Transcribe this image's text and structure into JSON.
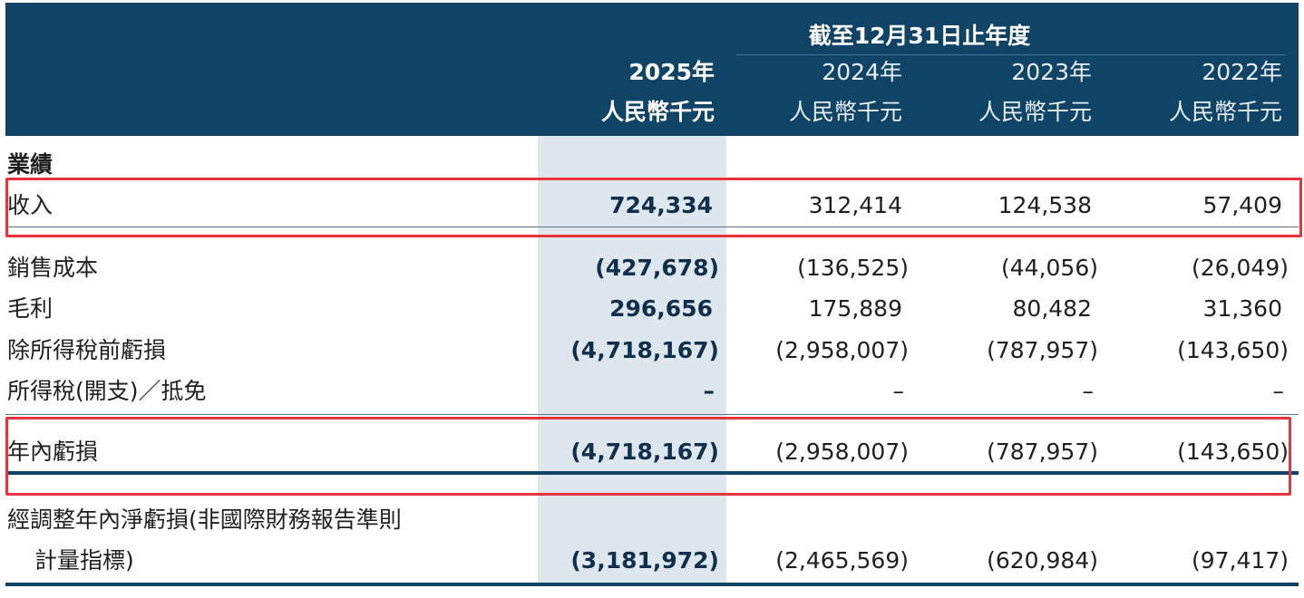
{
  "header": {
    "period_heading": "截至12月31日止年度",
    "columns": [
      {
        "year": "2025年",
        "unit": "人民幣千元"
      },
      {
        "year": "2024年",
        "unit": "人民幣千元"
      },
      {
        "year": "2023年",
        "unit": "人民幣千元"
      },
      {
        "year": "2022年",
        "unit": "人民幣千元"
      }
    ]
  },
  "section_title": "業績",
  "rows": [
    {
      "label": "收入",
      "values": [
        "724,334",
        "312,414",
        "124,538",
        "57,409"
      ]
    },
    {
      "label": "銷售成本",
      "values": [
        "(427,678)",
        "(136,525)",
        "(44,056)",
        "(26,049)"
      ]
    },
    {
      "label": "毛利",
      "values": [
        "296,656",
        "175,889",
        "80,482",
        "31,360"
      ]
    },
    {
      "label": "除所得稅前虧損",
      "values": [
        "(4,718,167)",
        "(2,958,007)",
        "(787,957)",
        "(143,650)"
      ]
    },
    {
      "label": "所得稅(開支)／抵免",
      "values": [
        "–",
        "–",
        "–",
        "–"
      ]
    },
    {
      "label": "年內虧損",
      "values": [
        "(4,718,167)",
        "(2,958,007)",
        "(787,957)",
        "(143,650)"
      ]
    },
    {
      "label": "經調整年內淨虧損(非國際財務報告準則",
      "label2": "計量指標)",
      "values": [
        "(3,181,972)",
        "(2,465,569)",
        "(620,984)",
        "(97,417)"
      ]
    }
  ],
  "colors": {
    "header_bg": "#0f4467",
    "highlight_column": "#dfe7ee",
    "annotation_box": "#e8323c"
  }
}
